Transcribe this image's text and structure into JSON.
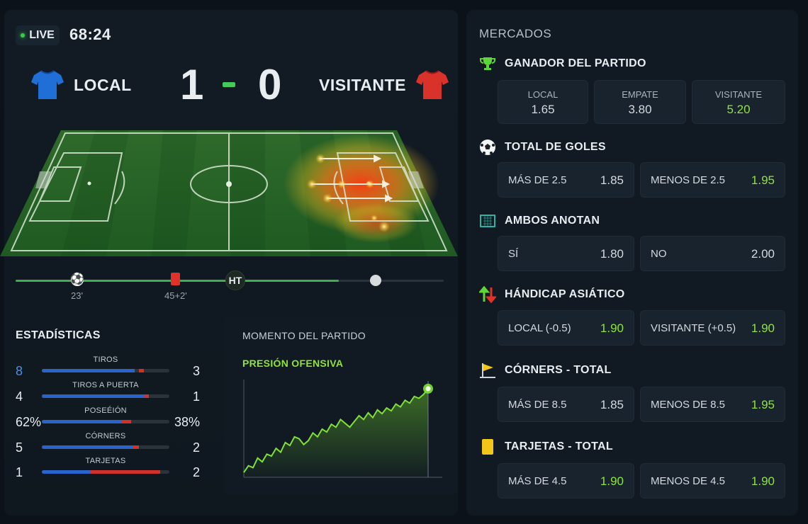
{
  "match": {
    "live_label": "LIVE",
    "clock": "68:24",
    "home_name": "LOCAL",
    "away_name": "VISITANTE",
    "home_score": "1",
    "away_score": "0",
    "home_color": "#1f6fd6",
    "away_color": "#d8322b"
  },
  "timeline": {
    "progress": 0.755,
    "events": [
      {
        "type": "goal",
        "label": "23'",
        "icon": "soccer-ball-icon"
      },
      {
        "type": "red-card",
        "label": "45+2'",
        "icon": "red-card-icon"
      }
    ],
    "halftime_label": "HT"
  },
  "stats": {
    "title": "ESTADÍSTICAS",
    "rows": [
      {
        "name": "TIROS",
        "home": "8",
        "away": "3",
        "home_frac": 0.73
      },
      {
        "name": "TIROS A PUERTA",
        "home": "4",
        "away": "1",
        "home_frac": 0.8
      },
      {
        "name": "POSEÉIÓN",
        "home": "62%",
        "away": "38%",
        "home_frac": 0.62
      },
      {
        "name": "CÓRNERS",
        "home": "5",
        "away": "2",
        "home_frac": 0.71
      },
      {
        "name": "TARJETAS",
        "home": "1",
        "away": "2",
        "home_frac": 0.38
      }
    ]
  },
  "momentum": {
    "title": "MOMENTO DEL PARTIDO",
    "subtitle": "PRESIÓN OFENSIVA"
  },
  "chart_data": {
    "type": "area",
    "title": "",
    "xlabel": "",
    "ylabel": "",
    "x": [
      0,
      1,
      2,
      3,
      4,
      5,
      6,
      7,
      8,
      9,
      10,
      11,
      12,
      13,
      14,
      15,
      16,
      17,
      18,
      19,
      20,
      21,
      22,
      23,
      24,
      25,
      26,
      27,
      28,
      29,
      30,
      31,
      32,
      33,
      34,
      35,
      36,
      37,
      38,
      39,
      40
    ],
    "values": [
      5,
      12,
      10,
      20,
      16,
      24,
      22,
      30,
      26,
      36,
      33,
      42,
      40,
      34,
      38,
      46,
      42,
      50,
      47,
      55,
      52,
      60,
      56,
      52,
      58,
      64,
      60,
      67,
      62,
      70,
      66,
      72,
      69,
      76,
      73,
      80,
      77,
      84,
      82,
      86,
      92
    ],
    "ylim": [
      0,
      100
    ],
    "grid": false,
    "legend": "none"
  },
  "markets": {
    "title": "MERCADOS",
    "winner": {
      "title": "GANADOR DEL PARTIDO",
      "icon": "trophy-icon",
      "options": [
        {
          "label": "LOCAL",
          "odd": "1.65",
          "hot": false
        },
        {
          "label": "EMPATE",
          "odd": "3.80",
          "hot": false
        },
        {
          "label": "VISITANTE",
          "odd": "5.20",
          "hot": true
        }
      ]
    },
    "total_goals": {
      "title": "TOTAL DE GOLES",
      "icon": "soccer-ball-icon",
      "options": [
        {
          "label": "MÁS DE 2.5",
          "odd": "1.85",
          "hot": false
        },
        {
          "label": "MENOS DE 2.5",
          "odd": "1.95",
          "hot": true
        }
      ]
    },
    "btts": {
      "title": "AMBOS ANOTAN",
      "icon": "goal-net-icon",
      "options": [
        {
          "label": "SÍ",
          "odd": "1.80",
          "hot": false
        },
        {
          "label": "NO",
          "odd": "2.00",
          "hot": false
        }
      ]
    },
    "handicap": {
      "title": "HÁNDICAP ASIÁTICO",
      "icon": "up-down-arrows-icon",
      "options": [
        {
          "label": "LOCAL (-0.5)",
          "odd": "1.90",
          "hot": true
        },
        {
          "label": "VISITANTE (+0.5)",
          "odd": "1.90",
          "hot": true
        }
      ]
    },
    "corners": {
      "title": "CÓRNERS - TOTAL",
      "icon": "corner-flag-icon",
      "options": [
        {
          "label": "MÁS DE 8.5",
          "odd": "1.85",
          "hot": false
        },
        {
          "label": "MENOS DE 8.5",
          "odd": "1.95",
          "hot": true
        }
      ]
    },
    "cards": {
      "title": "TARJETAS - TOTAL",
      "icon": "yellow-card-icon",
      "options": [
        {
          "label": "MÁS DE 4.5",
          "odd": "1.90",
          "hot": true
        },
        {
          "label": "MENOS DE 4.5",
          "odd": "1.90",
          "hot": true
        }
      ]
    }
  }
}
